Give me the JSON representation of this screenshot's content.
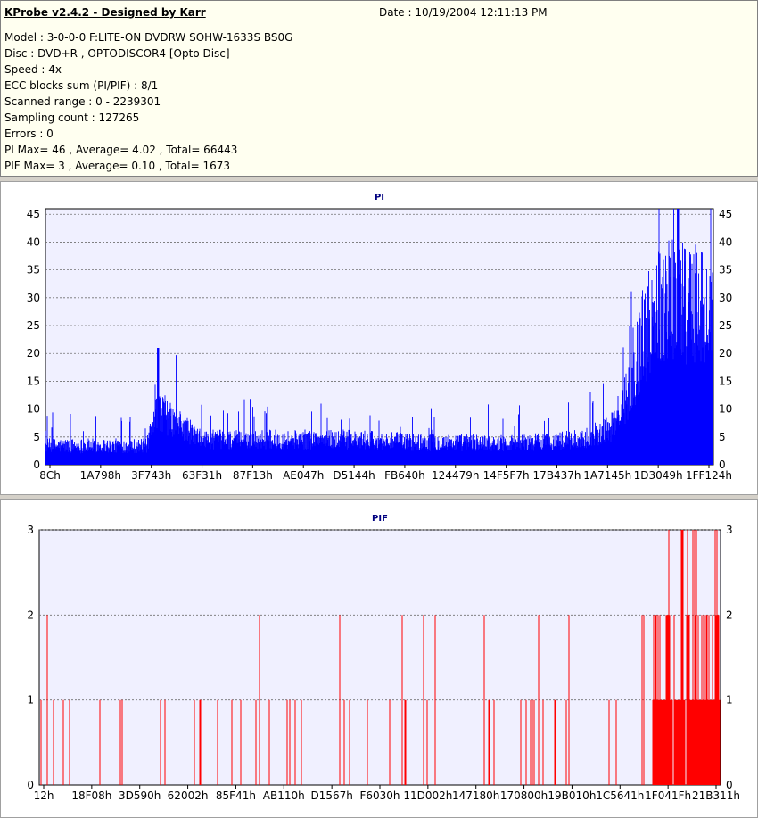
{
  "app": {
    "title": "KProbe v2.4.2 - Designed by Karr",
    "date": "Date : 10/19/2004 12:11:13 PM"
  },
  "info_lines": [
    "Model : 3-0-0-0 F:LITE-ON DVDRW SOHW-1633S BS0G",
    "Disc : DVD+R , OPTODISCOR4 [Opto Disc]",
    "Speed : 4x",
    "ECC blocks sum (PI/PIF) : 8/1",
    "Scanned range : 0 - 2239301",
    "Sampling count : 127265",
    "Errors : 0",
    "PI Max= 46 , Average= 4.02 , Total= 66443",
    "PIF Max= 3 , Average= 0.10 , Total= 1673"
  ],
  "colors": {
    "pi": "#0000ff",
    "pif": "#ff0000",
    "plot_bg": "#f0f0ff",
    "grid": "#707070",
    "title": "#000080"
  },
  "chart_data": [
    {
      "type": "bar",
      "title": "PI",
      "ylim": [
        0,
        46
      ],
      "yticks": [
        0,
        5,
        10,
        15,
        20,
        25,
        30,
        35,
        40,
        45
      ],
      "xticks": [
        "8Ch",
        "1A798h",
        "3F743h",
        "63F31h",
        "87F13h",
        "AE047h",
        "D5144h",
        "FB640h",
        "124479h",
        "14F5F7h",
        "17B437h",
        "1A7145h",
        "1D3049h",
        "1FF124h"
      ],
      "grid": true,
      "x_range": [
        0,
        2239301
      ],
      "baseline_profile": {
        "x": [
          0,
          340000,
          360000,
          380000,
          420000,
          460000,
          520000,
          700000,
          1000000,
          1300000,
          1600000,
          1800000,
          1900000,
          1960000,
          2000000,
          2060000,
          2120000,
          2180000,
          2239301
        ],
        "y": [
          3,
          3,
          6,
          9,
          7,
          6,
          4,
          4,
          4,
          3.5,
          3.5,
          4,
          6,
          12,
          20,
          26,
          27,
          25,
          24
        ]
      },
      "notable_peaks": [
        {
          "x": 378000,
          "y": 21
        },
        {
          "x": 2120000,
          "y": 46
        }
      ],
      "max": 46,
      "average": 4.02,
      "total": 66443
    },
    {
      "type": "bar",
      "title": "PIF",
      "ylim": [
        0,
        3
      ],
      "yticks": [
        0,
        1,
        2,
        3
      ],
      "xticks": [
        "12h",
        "18F08h",
        "3D590h",
        "62002h",
        "85F41h",
        "AB110h",
        "D1567h",
        "F6030h",
        "11D002h",
        "147180h",
        "170800h",
        "19B010h",
        "1C5641h",
        "1F041Fh",
        "21B311h"
      ],
      "grid": true,
      "x_range": [
        0,
        2239301
      ],
      "max": 3,
      "average": 0.1,
      "total": 1673
    }
  ]
}
